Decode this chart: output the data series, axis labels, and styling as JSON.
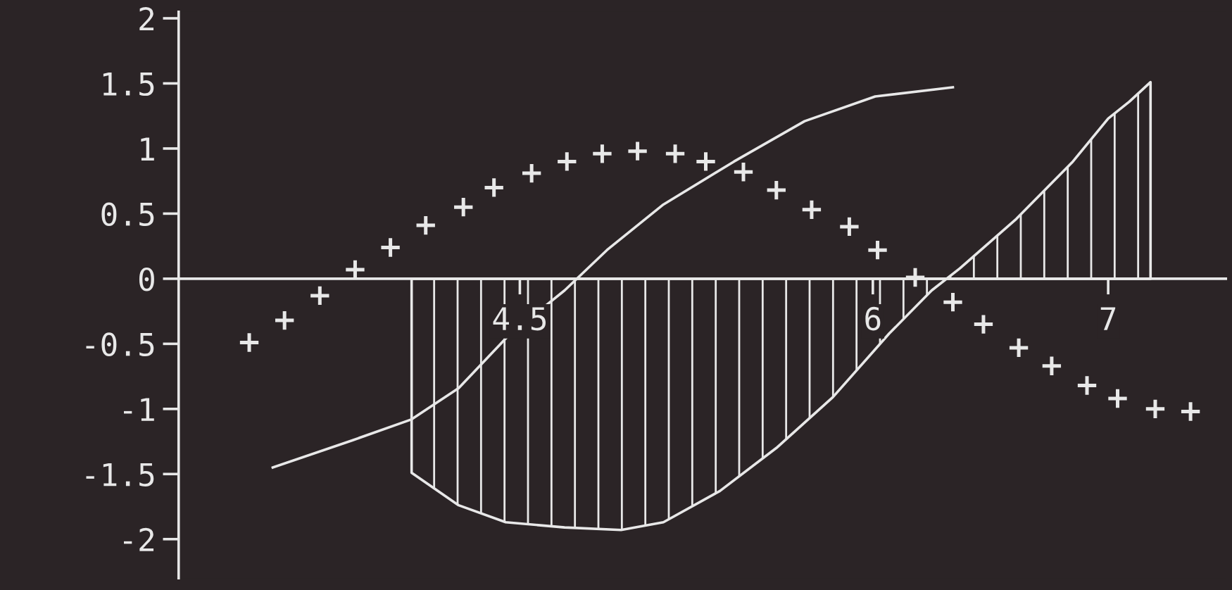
{
  "chart_data": {
    "type": "line",
    "xlim": [
      3.05,
      7.5
    ],
    "ylim": [
      -2.3,
      2.05
    ],
    "xticks": [
      4.5,
      6,
      7
    ],
    "yticks": [
      2,
      1.5,
      1,
      0.5,
      0,
      -0.5,
      -1,
      -1.5,
      -2
    ],
    "grid": false,
    "legend": false,
    "series": [
      {
        "type": "area",
        "color": "#e8e8e8",
        "x": [
          4.04,
          4.04,
          4.24,
          4.44,
          4.69,
          4.93,
          5.11,
          5.35,
          5.59,
          5.83,
          6.07,
          6.25,
          6.37,
          6.61,
          6.85,
          7.0,
          7.09,
          7.18
        ],
        "values": [
          0,
          -1.49,
          -1.74,
          -1.87,
          -1.91,
          -1.93,
          -1.87,
          -1.63,
          -1.3,
          -0.91,
          -0.42,
          -0.09,
          0.08,
          0.46,
          0.9,
          1.23,
          1.36,
          1.51
        ]
      },
      {
        "color": "#e8e8e8",
        "marker": "none",
        "x": [
          3.45,
          3.79,
          4.04,
          4.24,
          4.45,
          4.69,
          4.87,
          5.11,
          5.41,
          5.71,
          6.01,
          6.34
        ],
        "values": [
          -1.45,
          -1.24,
          -1.08,
          -0.84,
          -0.44,
          -0.09,
          0.22,
          0.57,
          0.9,
          1.21,
          1.4,
          1.47
        ]
      },
      {
        "type": "scatter",
        "color": "#e8e8e8",
        "marker": "cross",
        "x": [
          3.35,
          3.5,
          3.65,
          3.8,
          3.95,
          4.1,
          4.26,
          4.39,
          4.55,
          4.7,
          4.85,
          5.0,
          5.16,
          5.29,
          5.45,
          5.59,
          5.74,
          5.9,
          6.02,
          6.18,
          6.34,
          6.47,
          6.62,
          6.76,
          6.91,
          7.04,
          7.2,
          7.35
        ],
        "values": [
          -0.49,
          -0.32,
          -0.13,
          0.07,
          0.24,
          0.41,
          0.55,
          0.7,
          0.81,
          0.9,
          0.96,
          0.98,
          0.96,
          0.9,
          0.82,
          0.68,
          0.53,
          0.4,
          0.22,
          0.01,
          -0.18,
          -0.35,
          -0.53,
          -0.67,
          -0.82,
          -0.92,
          -1.0,
          -1.02
        ]
      }
    ]
  }
}
